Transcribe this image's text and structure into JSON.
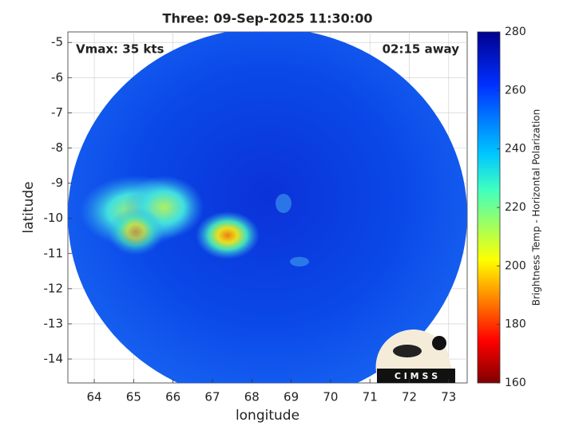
{
  "chart_data": {
    "type": "image",
    "title": "Three: 09-Sep-2025 11:30:00",
    "xlabel": "longitude",
    "ylabel": "latitude",
    "xlim": [
      63.33,
      73.47
    ],
    "ylim": [
      -14.68,
      -4.7
    ],
    "xticks": [
      64,
      65,
      66,
      67,
      68,
      69,
      70,
      71,
      72,
      73
    ],
    "yticks": [
      -5,
      -6,
      -7,
      -8,
      -9,
      -10,
      -11,
      -12,
      -13,
      -14
    ],
    "grid": true,
    "annotations": [
      "Vmax: 35 kts",
      "02:15 away"
    ],
    "logo": "C I M S S",
    "colorbar": {
      "label": "Brightness Temp - Horizontal Polarization",
      "clim": [
        160,
        280
      ],
      "ticks": [
        160,
        180,
        200,
        220,
        240,
        260,
        280
      ]
    }
  }
}
